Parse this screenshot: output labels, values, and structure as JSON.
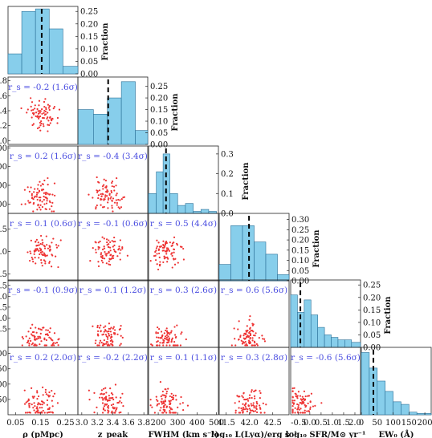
{
  "colors": {
    "hist_fill": "#87ceeb",
    "hist_edge": "#2a6f97",
    "scatter": "#ee3333",
    "corr_text": "#4a4de0",
    "median_line": "#000000"
  },
  "frac_label": "Fraction",
  "variables": [
    {
      "key": "rho",
      "label": "ρ (pMpc)",
      "range": [
        0.02,
        0.3
      ],
      "ticks": [
        "0.05",
        "0.15",
        "0.25"
      ],
      "tick_vals": [
        0.05,
        0.15,
        0.25
      ]
    },
    {
      "key": "zpeak",
      "label": "z_peak",
      "range": [
        2.95,
        3.85
      ],
      "ticks": [
        "3.0",
        "3.2",
        "3.4",
        "3.6",
        "3.8"
      ],
      "tick_vals": [
        3.0,
        3.2,
        3.4,
        3.6,
        3.8
      ]
    },
    {
      "key": "fwhm",
      "label": "FWHM (km s⁻¹)",
      "range": [
        150,
        510
      ],
      "ticks": [
        "200",
        "300",
        "400",
        "500"
      ],
      "tick_vals": [
        200,
        300,
        400,
        500
      ]
    },
    {
      "key": "lya",
      "label": "log₁₀ L(Lyα)/erg s⁻¹",
      "range": [
        41.35,
        42.85
      ],
      "ticks": [
        "41.5",
        "42.0",
        "42.5"
      ],
      "tick_vals": [
        41.5,
        42.0,
        42.5
      ]
    },
    {
      "key": "sfr",
      "label": "log₁₀ SFR/M⊙ yr⁻¹",
      "range": [
        -0.85,
        2.25
      ],
      "ticks": [
        "-0.5",
        "0.0",
        "0.5",
        "1.0",
        "1.5",
        "2.0"
      ],
      "tick_vals": [
        -0.5,
        0.0,
        0.5,
        1.0,
        1.5,
        2.0
      ]
    },
    {
      "key": "ew",
      "label": "EW₀ (Å)",
      "range": [
        0,
        220
      ],
      "ticks": [
        "0",
        "50",
        "100",
        "150",
        "200"
      ],
      "tick_vals": [
        0,
        50,
        100,
        150,
        200
      ]
    }
  ],
  "left_axis_ticks": [
    {
      "row": 1,
      "ticks": [
        ".8",
        ".6",
        ".4",
        ".2",
        ".0",
        ".8"
      ],
      "vals": [
        3.8,
        3.6,
        3.4,
        3.2,
        3.0,
        2.8
      ]
    },
    {
      "row": 2,
      "ticks": [
        "00",
        "00",
        "00",
        "00"
      ],
      "vals": [
        500,
        400,
        300,
        200
      ]
    },
    {
      "row": 3,
      "ticks": [
        "2.5",
        "2.0",
        "1.5",
        "1.0",
        "1.5"
      ],
      "vals": [
        42.5,
        42.0,
        41.5,
        41.0,
        40.5
      ]
    },
    {
      "row": 4,
      "ticks": [
        "1.5",
        "1.0",
        "1.5",
        "1.0",
        "1.5"
      ],
      "vals": [
        2.0,
        1.5,
        1.0,
        0.5,
        0.0
      ]
    },
    {
      "row": 5,
      "ticks": [
        "00",
        "50",
        "00",
        "50"
      ],
      "vals": [
        200,
        150,
        100,
        50
      ]
    }
  ],
  "chart_data": {
    "type": "corner",
    "diagonal_histograms": [
      {
        "var": "rho",
        "edges": [
          0.02,
          0.075,
          0.13,
          0.185,
          0.24,
          0.3
        ],
        "fraction": [
          0.08,
          0.25,
          0.26,
          0.18,
          0.03
        ],
        "median": 0.155,
        "ylim": [
          0,
          0.27
        ],
        "yticks": [
          "0.25",
          "0.20",
          "0.15",
          "0.10",
          "0.05",
          "0.00"
        ]
      },
      {
        "var": "zpeak",
        "edges": [
          2.95,
          3.15,
          3.33,
          3.51,
          3.69,
          3.85
        ],
        "fraction": [
          0.15,
          0.13,
          0.2,
          0.27,
          0.06
        ],
        "median": 3.34,
        "ylim": [
          0,
          0.29
        ],
        "yticks": [
          "0.25",
          "0.20",
          "0.15",
          "0.10",
          "0.05",
          "0.00"
        ]
      },
      {
        "var": "fwhm",
        "edges": [
          150,
          190,
          225,
          260,
          300,
          340,
          380,
          420,
          460,
          500
        ],
        "fraction": [
          0.1,
          0.21,
          0.3,
          0.1,
          0.04,
          0.05,
          0.01,
          0.02,
          0.01
        ],
        "median": 240,
        "ylim": [
          0,
          0.34
        ],
        "yticks": [
          "0.3",
          "0.2",
          "0.1",
          "0.0"
        ]
      },
      {
        "var": "lya",
        "edges": [
          41.35,
          41.6,
          41.85,
          42.1,
          42.35,
          42.6,
          42.85
        ],
        "fraction": [
          0.08,
          0.27,
          0.27,
          0.19,
          0.13,
          0.03
        ],
        "median": 41.99,
        "ylim": [
          0,
          0.33
        ],
        "yticks": [
          "0.30",
          "0.25",
          "0.20",
          "0.15",
          "0.10",
          "0.05",
          "0.00"
        ]
      },
      {
        "var": "sfr",
        "edges": [
          -0.85,
          -0.55,
          -0.25,
          0.05,
          0.35,
          0.65,
          0.95,
          1.25,
          1.55,
          1.85,
          2.25
        ],
        "fraction": [
          0.21,
          0.14,
          0.19,
          0.13,
          0.08,
          0.05,
          0.04,
          0.03,
          0.03,
          0.02
        ],
        "median": -0.42,
        "ylim": [
          0,
          0.27
        ],
        "yticks": [
          "0.25",
          "0.20",
          "0.15",
          "0.10",
          "0.05",
          "0.00"
        ]
      },
      {
        "var": "ew",
        "edges": [
          0,
          25,
          50,
          75,
          100,
          125,
          150,
          175,
          200,
          220
        ],
        "fraction": [
          0.24,
          0.18,
          0.13,
          0.09,
          0.05,
          0.04,
          0.01,
          0.005,
          0.005
        ],
        "median": 38,
        "ylim": [
          0,
          0.26
        ],
        "yticks": []
      }
    ],
    "correlations": [
      {
        "row": 1,
        "col": 0,
        "text": "r_s = -0.2 (1.6σ)"
      },
      {
        "row": 2,
        "col": 0,
        "text": "r_s = 0.2 (1.6σ)"
      },
      {
        "row": 2,
        "col": 1,
        "text": "r_s = -0.4 (3.4σ)"
      },
      {
        "row": 3,
        "col": 0,
        "text": "r_s = 0.1 (0.6σ)"
      },
      {
        "row": 3,
        "col": 1,
        "text": "r_s = -0.1 (0.6σ)"
      },
      {
        "row": 3,
        "col": 2,
        "text": "r_s = 0.5 (4.4σ)"
      },
      {
        "row": 4,
        "col": 0,
        "text": "r_s = -0.1 (0.9σ)"
      },
      {
        "row": 4,
        "col": 1,
        "text": "r_s = 0.1 (1.2σ)"
      },
      {
        "row": 4,
        "col": 2,
        "text": "r_s = 0.3 (2.6σ)"
      },
      {
        "row": 4,
        "col": 3,
        "text": "r_s = 0.6 (5.6σ)"
      },
      {
        "row": 5,
        "col": 0,
        "text": "r_s = 0.2 (2.0σ)"
      },
      {
        "row": 5,
        "col": 1,
        "text": "r_s = -0.2 (2.2σ)"
      },
      {
        "row": 5,
        "col": 2,
        "text": "r_s = 0.1 (1.1σ)"
      },
      {
        "row": 5,
        "col": 3,
        "text": "r_s = 0.3 (2.8σ)"
      },
      {
        "row": 5,
        "col": 4,
        "text": "r_s = -0.6 (5.6σ)"
      }
    ],
    "scatter_points_per_panel": 80,
    "scatter_note": "approximately 80 sources per panel"
  }
}
